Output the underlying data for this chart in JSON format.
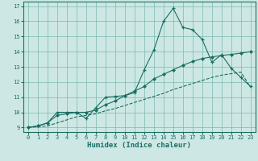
{
  "xlabel": "Humidex (Indice chaleur)",
  "bg_color": "#cde8e4",
  "grid_color": "#7ab8b0",
  "line_color": "#1a6e64",
  "xlim": [
    -0.5,
    23.5
  ],
  "ylim": [
    8.7,
    17.3
  ],
  "xticks": [
    0,
    1,
    2,
    3,
    4,
    5,
    6,
    7,
    8,
    9,
    10,
    11,
    12,
    13,
    14,
    15,
    16,
    17,
    18,
    19,
    20,
    21,
    22,
    23
  ],
  "yticks": [
    9,
    10,
    11,
    12,
    13,
    14,
    15,
    16,
    17
  ],
  "line1_x": [
    0,
    1,
    2,
    3,
    4,
    5,
    6,
    7,
    8,
    9,
    10,
    11,
    12,
    13,
    14,
    15,
    16,
    17,
    18,
    19,
    20,
    21,
    22,
    23
  ],
  "line1_y": [
    9.0,
    9.1,
    9.3,
    10.0,
    10.0,
    10.0,
    9.6,
    10.3,
    11.0,
    11.05,
    11.1,
    11.3,
    12.8,
    14.1,
    16.0,
    16.85,
    15.6,
    15.45,
    14.8,
    13.3,
    13.8,
    12.9,
    12.3,
    11.7
  ],
  "line2_x": [
    0,
    1,
    2,
    3,
    4,
    5,
    6,
    7,
    8,
    9,
    10,
    11,
    12,
    13,
    14,
    15,
    16,
    17,
    18,
    19,
    20,
    21,
    22,
    23
  ],
  "line2_y": [
    9.0,
    9.1,
    9.3,
    9.8,
    9.9,
    10.0,
    10.0,
    10.15,
    10.5,
    10.75,
    11.1,
    11.4,
    11.7,
    12.2,
    12.5,
    12.8,
    13.1,
    13.35,
    13.55,
    13.65,
    13.75,
    13.82,
    13.9,
    14.0
  ],
  "line3_x": [
    0,
    1,
    2,
    3,
    4,
    5,
    6,
    7,
    8,
    9,
    10,
    11,
    12,
    13,
    14,
    15,
    16,
    17,
    18,
    19,
    20,
    21,
    22,
    23
  ],
  "line3_y": [
    9.0,
    9.05,
    9.1,
    9.3,
    9.5,
    9.7,
    9.8,
    9.9,
    10.1,
    10.25,
    10.45,
    10.65,
    10.85,
    11.05,
    11.25,
    11.5,
    11.7,
    11.9,
    12.1,
    12.3,
    12.45,
    12.55,
    12.65,
    11.65
  ]
}
